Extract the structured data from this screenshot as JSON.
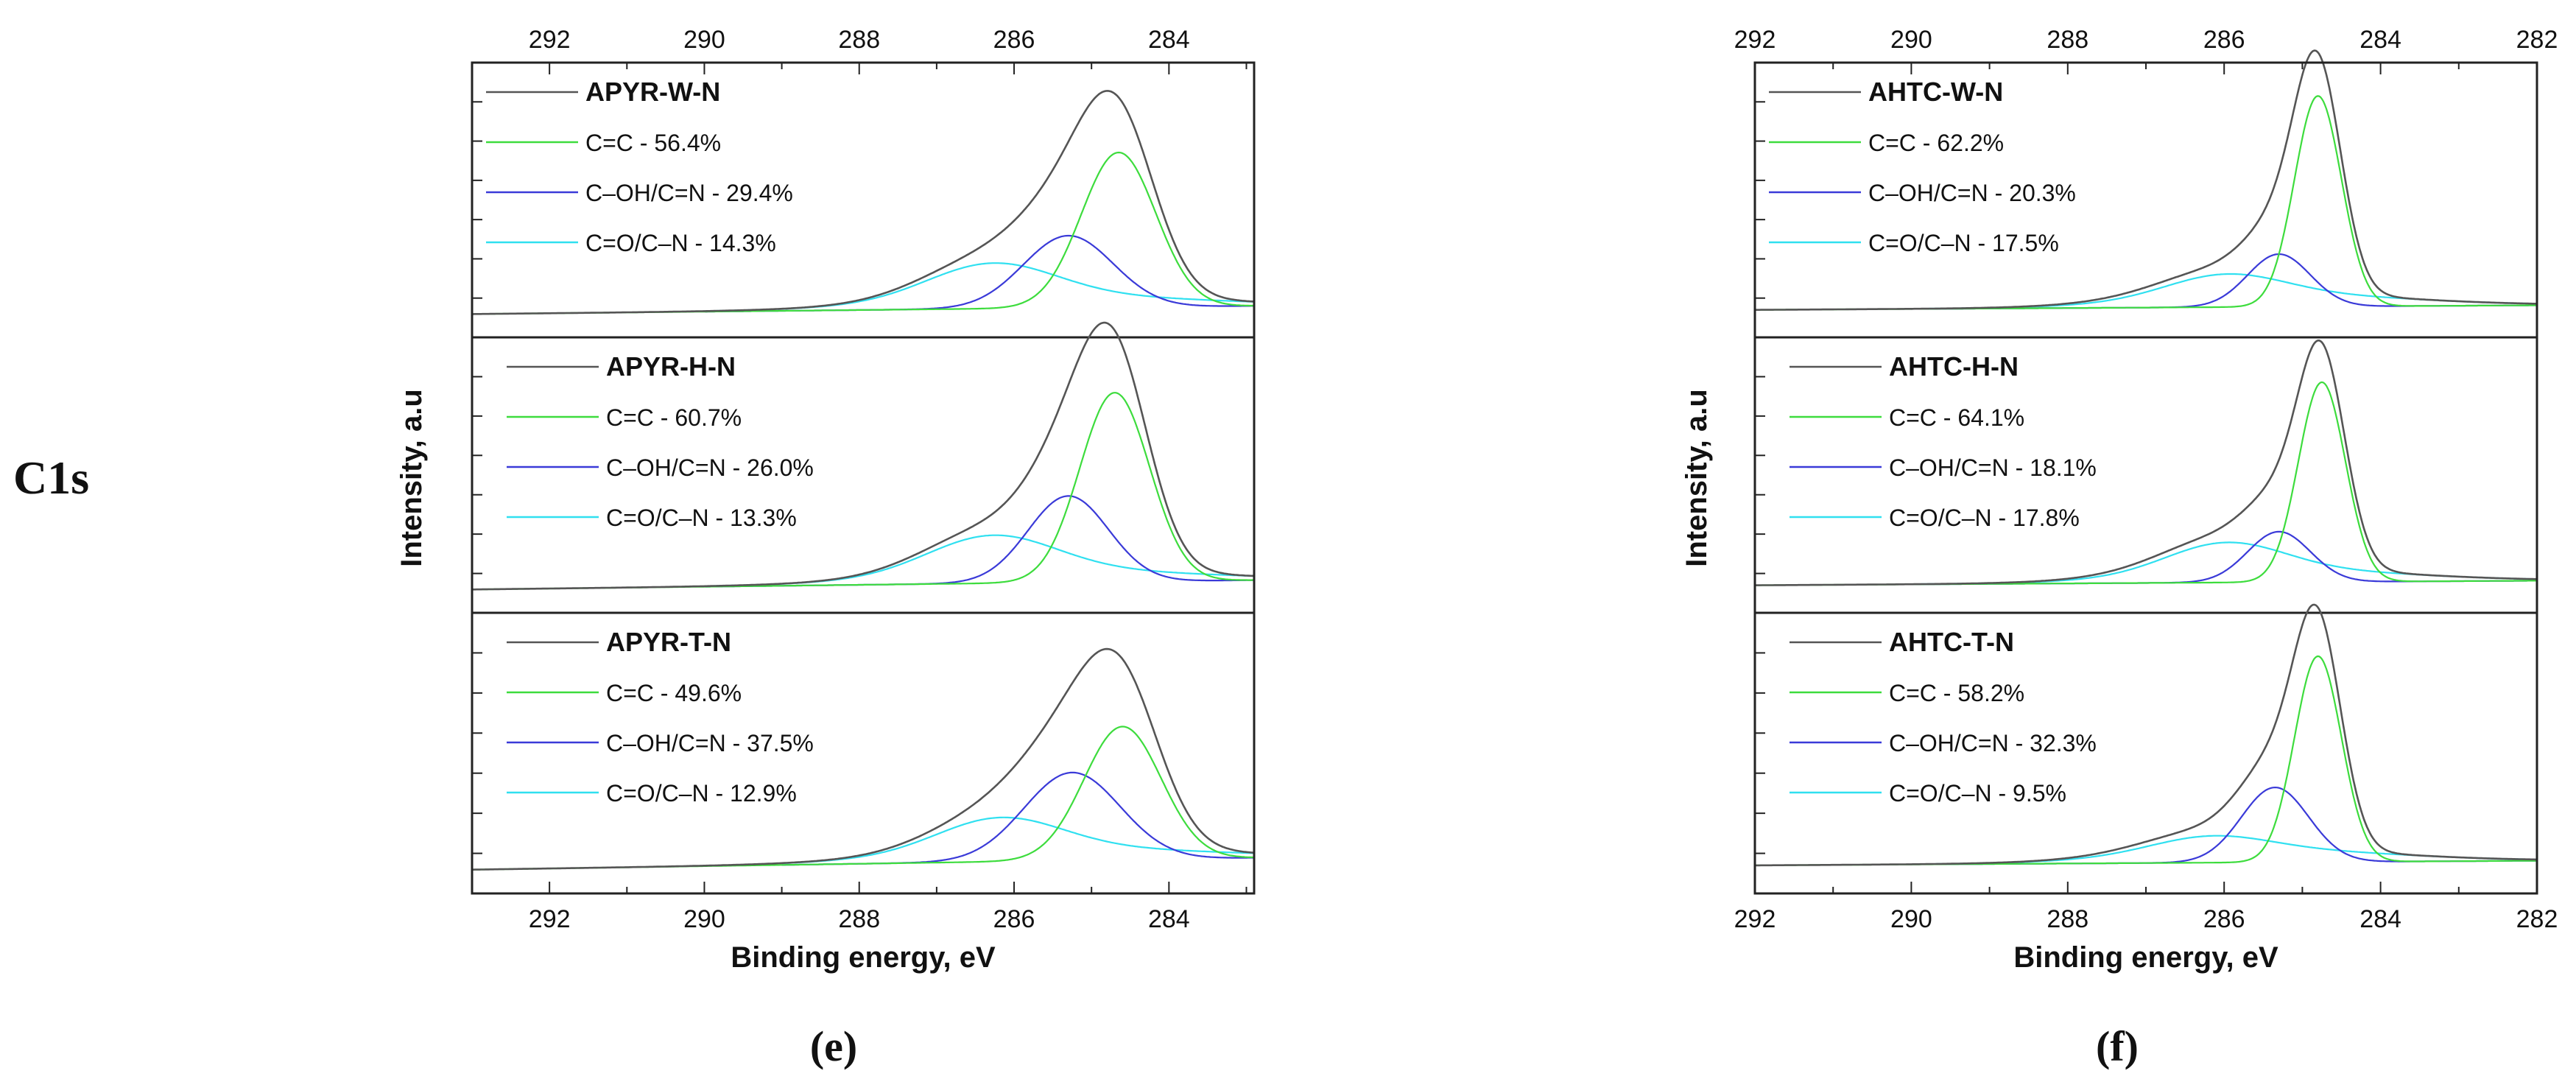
{
  "figure": {
    "side_label": "C1s"
  },
  "colors": {
    "envelope": "#555555",
    "cc": "#3ddc3d",
    "coh": "#3a3ad8",
    "co": "#30e0f0",
    "frame": "#222222"
  },
  "chart_data": [
    {
      "type": "line",
      "panel_label": "(e)",
      "xlabel": "Binding energy, eV",
      "ylabel": "Intensity, a.u",
      "xlim": [
        293,
        282.9
      ],
      "xticks": [
        292,
        290,
        288,
        286,
        284
      ],
      "subplots": [
        {
          "title": "APYR-W-N",
          "ylim": [
            -0.1,
            1.08
          ],
          "baseline_x": 290.0,
          "legend": [
            "C=C - 56.4%",
            "C–OH/C=N - 29.4%",
            "C=O/C–N -  14.3%"
          ],
          "components": [
            {
              "key": "cc",
              "center": 284.65,
              "height": 0.665,
              "width": 0.48
            },
            {
              "key": "coh",
              "center": 285.3,
              "height": 0.31,
              "width": 0.58
            },
            {
              "key": "co",
              "center": 286.3,
              "height": 0.15,
              "width": 0.82,
              "tail": 0.05,
              "tail_width": 1.8
            }
          ],
          "envelope_peak": 0.95,
          "baseline_left": 0.0,
          "baseline_right": 0.035
        },
        {
          "title": "APYR-H-N",
          "ylim": [
            -0.1,
            1.08
          ],
          "baseline_x": 290.0,
          "legend": [
            "C=C - 60.7%",
            "C–OH/C=N - 26.0%",
            "C=O/C–N - 13.3%"
          ],
          "components": [
            {
              "key": "cc",
              "center": 284.7,
              "height": 0.81,
              "width": 0.45
            },
            {
              "key": "coh",
              "center": 285.3,
              "height": 0.37,
              "width": 0.52
            },
            {
              "key": "co",
              "center": 286.3,
              "height": 0.16,
              "width": 0.82,
              "tail": 0.05,
              "tail_width": 1.8
            }
          ],
          "envelope_peak": 0.95,
          "baseline_left": 0.0,
          "baseline_right": 0.04
        },
        {
          "title": "APYR-T-N",
          "ylim": [
            -0.1,
            1.08
          ],
          "baseline_x": 289.0,
          "legend": [
            "C=C - 49.6%",
            "C–OH/C=N - 37.5%",
            "C=O/C–N - 12.9%"
          ],
          "components": [
            {
              "key": "cc",
              "center": 284.6,
              "height": 0.56,
              "width": 0.5
            },
            {
              "key": "coh",
              "center": 285.25,
              "height": 0.37,
              "width": 0.62
            },
            {
              "key": "co",
              "center": 286.2,
              "height": 0.14,
              "width": 0.8,
              "tail": 0.05,
              "tail_width": 1.8
            }
          ],
          "envelope_peak": 0.85,
          "baseline_left": 0.0,
          "baseline_right": 0.05
        }
      ]
    },
    {
      "type": "line",
      "panel_label": "(f)",
      "xlabel": "Binding energy, eV",
      "ylabel": "Intensity, a.u",
      "xlim": [
        292,
        282
      ],
      "xticks": [
        292,
        290,
        288,
        286,
        284,
        282
      ],
      "subplots": [
        {
          "title": "AHTC-W-N",
          "ylim": [
            -0.12,
            1.08
          ],
          "baseline_x": 290.0,
          "legend": [
            "C=C - 62.2%",
            "C–OH/C=N - 20.3%",
            "C=O/C–N - 17.5%"
          ],
          "components": [
            {
              "key": "cc",
              "center": 284.8,
              "height": 0.92,
              "width": 0.3
            },
            {
              "key": "coh",
              "center": 285.3,
              "height": 0.23,
              "width": 0.4
            },
            {
              "key": "co",
              "center": 286.0,
              "height": 0.1,
              "width": 0.75,
              "tail": 0.05,
              "tail_width": 1.6
            }
          ],
          "envelope_peak": 0.97,
          "baseline_left": 0.0,
          "baseline_right": 0.02
        },
        {
          "title": "AHTC-H-N",
          "ylim": [
            -0.12,
            1.08
          ],
          "baseline_x": 290.0,
          "legend": [
            "C=C - 64.1%",
            "C–OH/C=N - 18.1%",
            "C=O/C–N -  17.8%"
          ],
          "components": [
            {
              "key": "cc",
              "center": 284.75,
              "height": 0.87,
              "width": 0.3
            },
            {
              "key": "coh",
              "center": 285.3,
              "height": 0.22,
              "width": 0.4
            },
            {
              "key": "co",
              "center": 286.0,
              "height": 0.13,
              "width": 0.75,
              "tail": 0.05,
              "tail_width": 1.6
            }
          ],
          "envelope_peak": 0.93,
          "baseline_left": 0.0,
          "baseline_right": 0.02
        },
        {
          "title": "AHTC-T-N",
          "ylim": [
            -0.12,
            1.08
          ],
          "baseline_x": 289.7,
          "legend": [
            "C=C - 58.2%",
            "C–OH/C=N - 32.3%",
            "C=O/C–N - 9.5%"
          ],
          "components": [
            {
              "key": "cc",
              "center": 284.8,
              "height": 0.88,
              "width": 0.3
            },
            {
              "key": "coh",
              "center": 285.35,
              "height": 0.32,
              "width": 0.43
            },
            {
              "key": "co",
              "center": 286.2,
              "height": 0.07,
              "width": 0.75,
              "tail": 0.05,
              "tail_width": 1.6
            }
          ],
          "envelope_peak": 0.98,
          "baseline_left": 0.0,
          "baseline_right": 0.02
        }
      ]
    }
  ]
}
